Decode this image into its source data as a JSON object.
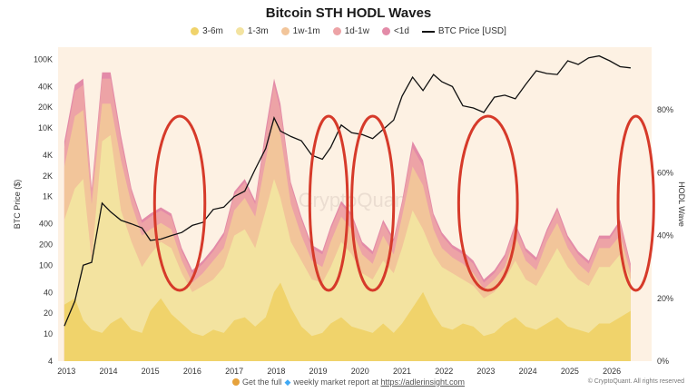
{
  "chart_data": {
    "type": "area",
    "title": "Bitcoin STH HODL Waves",
    "ylabel_left": "BTC Price ($)",
    "ylabel_right": "HODL Wave",
    "y_left_scale": "log",
    "ylim_left": [
      4,
      150000
    ],
    "ylim_right": [
      0,
      100
    ],
    "grid": false,
    "legend_position": "top-center",
    "watermark": "CryptoQuant",
    "x_ticks": [
      "2013",
      "2014",
      "2015",
      "2016",
      "2017",
      "2018",
      "2019",
      "2020",
      "2021",
      "2022",
      "2023",
      "2024",
      "2025",
      "2026"
    ],
    "y_left_ticks": [
      "100K",
      "40K",
      "20K",
      "10K",
      "4K",
      "2K",
      "1K",
      "400",
      "200",
      "100",
      "40",
      "20",
      "10",
      "4"
    ],
    "y_left_tick_values": [
      100000,
      40000,
      20000,
      10000,
      4000,
      2000,
      1000,
      400,
      200,
      100,
      40,
      20,
      10,
      4
    ],
    "y_right_ticks": [
      "80%",
      "60%",
      "40%",
      "20%",
      "0%"
    ],
    "y_right_tick_values": [
      80,
      60,
      40,
      20,
      0
    ],
    "dates": [
      2012.95,
      2013.2,
      2013.4,
      2013.6,
      2013.85,
      2014.05,
      2014.3,
      2014.55,
      2014.8,
      2015.0,
      2015.25,
      2015.5,
      2015.75,
      2016.0,
      2016.25,
      2016.5,
      2016.75,
      2017.0,
      2017.25,
      2017.5,
      2017.75,
      2017.95,
      2018.1,
      2018.35,
      2018.6,
      2018.85,
      2019.1,
      2019.3,
      2019.55,
      2019.8,
      2020.05,
      2020.3,
      2020.55,
      2020.8,
      2021.0,
      2021.25,
      2021.5,
      2021.75,
      2021.95,
      2022.2,
      2022.45,
      2022.7,
      2022.95,
      2023.2,
      2023.45,
      2023.7,
      2023.95,
      2024.2,
      2024.45,
      2024.7,
      2024.95,
      2025.2,
      2025.45,
      2025.7,
      2025.95,
      2026.2,
      2026.45
    ],
    "series": [
      {
        "name": "3-6m",
        "color": "#f0d36b",
        "values": [
          18,
          20,
          13,
          10,
          9,
          12,
          14,
          10,
          9,
          16,
          20,
          15,
          12,
          9,
          8,
          10,
          9,
          13,
          14,
          11,
          14,
          22,
          25,
          17,
          11,
          8,
          9,
          12,
          14,
          11,
          10,
          9,
          12,
          9,
          12,
          17,
          22,
          15,
          11,
          10,
          12,
          11,
          8,
          9,
          12,
          14,
          11,
          10,
          12,
          14,
          11,
          10,
          9,
          12,
          12,
          14,
          16
        ]
      },
      {
        "name": "1-3m",
        "color": "#f3e3a0",
        "values": [
          45,
          55,
          58,
          32,
          70,
          72,
          48,
          38,
          30,
          34,
          38,
          36,
          28,
          22,
          24,
          26,
          30,
          40,
          42,
          36,
          48,
          58,
          52,
          38,
          32,
          26,
          25,
          30,
          38,
          34,
          28,
          26,
          32,
          28,
          36,
          48,
          42,
          34,
          30,
          28,
          26,
          24,
          20,
          22,
          26,
          32,
          26,
          24,
          30,
          36,
          30,
          26,
          24,
          30,
          30,
          34,
          26
        ]
      },
      {
        "name": "1w-1m",
        "color": "#f2c59a",
        "values": [
          62,
          78,
          80,
          50,
          82,
          82,
          64,
          50,
          40,
          42,
          44,
          42,
          32,
          25,
          28,
          32,
          36,
          48,
          52,
          46,
          64,
          78,
          72,
          50,
          40,
          32,
          30,
          38,
          46,
          42,
          34,
          31,
          40,
          34,
          46,
          62,
          56,
          42,
          36,
          33,
          31,
          28,
          23,
          26,
          30,
          40,
          32,
          29,
          38,
          44,
          36,
          31,
          28,
          36,
          36,
          40,
          28
        ]
      },
      {
        "name": "1d-1w",
        "color": "#eda3a6",
        "values": [
          68,
          86,
          88,
          54,
          90,
          90,
          70,
          54,
          44,
          46,
          48,
          46,
          35,
          28,
          31,
          35,
          40,
          53,
          57,
          50,
          72,
          88,
          80,
          56,
          45,
          36,
          34,
          42,
          50,
          46,
          37,
          34,
          44,
          38,
          50,
          68,
          62,
          46,
          40,
          36,
          34,
          31,
          25,
          28,
          33,
          43,
          35,
          32,
          41,
          48,
          39,
          34,
          31,
          39,
          39,
          44,
          30
        ]
      },
      {
        "name": "<1d",
        "color": "#e38ba8",
        "values": [
          70,
          88,
          90,
          55,
          92,
          92,
          72,
          55,
          45,
          47,
          49,
          47,
          36,
          29,
          32,
          36,
          41,
          54,
          58,
          51,
          74,
          90,
          82,
          57,
          46,
          37,
          35,
          43,
          51,
          47,
          38,
          35,
          45,
          39,
          51,
          70,
          64,
          47,
          41,
          37,
          35,
          32,
          26,
          29,
          34,
          44,
          36,
          33,
          42,
          49,
          40,
          35,
          32,
          40,
          40,
          45,
          31
        ]
      },
      {
        "name": "BTC Price [USD]",
        "color": "#111111",
        "values": [
          13,
          30,
          100,
          110,
          800,
          600,
          450,
          400,
          350,
          230,
          240,
          270,
          300,
          380,
          420,
          650,
          700,
          1000,
          1200,
          2500,
          5000,
          14000,
          9000,
          7500,
          6500,
          4000,
          3500,
          5200,
          11000,
          8500,
          8000,
          7000,
          9500,
          13000,
          29000,
          55000,
          35000,
          60000,
          47000,
          40000,
          21000,
          19500,
          16800,
          28000,
          30000,
          26500,
          43000,
          68000,
          62000,
          60000,
          95000,
          84000,
          105000,
          112000,
          95000,
          78000,
          75000
        ]
      }
    ],
    "annotations": [
      {
        "type": "ellipse",
        "color": "#d63a2a",
        "x_range": [
          2015.1,
          2016.3
        ]
      },
      {
        "type": "ellipse",
        "color": "#d63a2a",
        "x_range": [
          2018.8,
          2019.7
        ]
      },
      {
        "type": "ellipse",
        "color": "#d63a2a",
        "x_range": [
          2019.8,
          2020.8
        ]
      },
      {
        "type": "ellipse",
        "color": "#d63a2a",
        "x_range": [
          2022.35,
          2023.75
        ]
      },
      {
        "type": "ellipse",
        "color": "#d63a2a",
        "x_range": [
          2026.15,
          2027.0
        ]
      }
    ]
  },
  "footer": {
    "prefix": "Get the full",
    "middle": "weekly market report at",
    "link": "https://adlerinsight.com"
  },
  "credit": "© CryptoQuant. All rights reserved"
}
